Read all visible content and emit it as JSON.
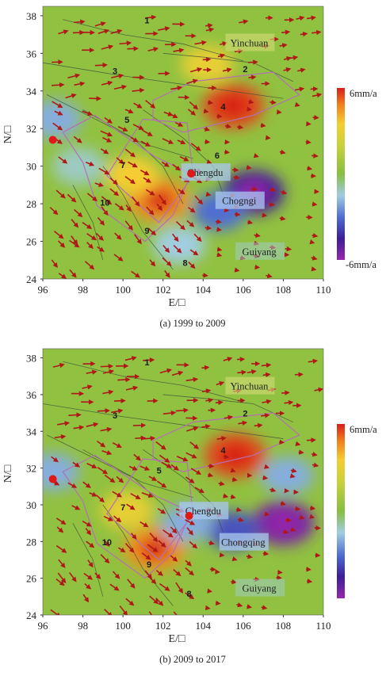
{
  "chart_data": [
    {
      "type": "heatmap",
      "caption": "(a) 1999 to 2009",
      "xlabel": "E/□",
      "ylabel": "N/□",
      "x_ticks": [
        96,
        98,
        100,
        102,
        104,
        106,
        108,
        110
      ],
      "y_ticks": [
        24,
        26,
        28,
        30,
        32,
        34,
        36,
        38
      ],
      "xlim": [
        96,
        110
      ],
      "ylim": [
        24,
        38.5
      ],
      "colorbar": {
        "max_label": "6mm/a",
        "min_label": "-6mm/a",
        "range": [
          -6,
          6
        ]
      },
      "cities": [
        {
          "name": "Yinchuan",
          "lon": 106.3,
          "lat": 36.5
        },
        {
          "name": "Chengdu",
          "lon": 104.1,
          "lat": 29.6
        },
        {
          "name": "Chogngi",
          "lon": 105.8,
          "lat": 28.1
        },
        {
          "name": "Guiyang",
          "lon": 106.8,
          "lat": 25.4
        }
      ],
      "region_numbers": [
        {
          "label": "1",
          "lon": 101.2,
          "lat": 37.6
        },
        {
          "label": "2",
          "lon": 106.1,
          "lat": 35.0
        },
        {
          "label": "3",
          "lon": 99.6,
          "lat": 34.9
        },
        {
          "label": "4",
          "lon": 105.0,
          "lat": 33.0
        },
        {
          "label": "5",
          "lon": 100.2,
          "lat": 32.3
        },
        {
          "label": "6",
          "lon": 104.7,
          "lat": 30.4
        },
        {
          "label": "7",
          "lon": 100.0,
          "lat": 29.9
        },
        {
          "label": "9",
          "lon": 101.2,
          "lat": 26.4
        },
        {
          "label": "10",
          "lon": 99.1,
          "lat": 27.9
        },
        {
          "label": "8",
          "lon": 103.1,
          "lat": 24.7
        }
      ],
      "markers": [
        {
          "lon": 96.5,
          "lat": 31.4
        },
        {
          "lon": 103.4,
          "lat": 29.6
        }
      ],
      "hotspots": [
        {
          "lon": 105.5,
          "lat": 33.2,
          "value": 5.5
        },
        {
          "lon": 101.8,
          "lat": 28.2,
          "value": 4.5
        },
        {
          "lon": 100.5,
          "lat": 29.5,
          "value": 3.5
        },
        {
          "lon": 104.2,
          "lat": 35.4,
          "value": 3.0
        },
        {
          "lon": 106.5,
          "lat": 28.6,
          "value": -4.5
        },
        {
          "lon": 104.8,
          "lat": 27.6,
          "value": -3.0
        },
        {
          "lon": 96.6,
          "lat": 32.5,
          "value": -2.0
        },
        {
          "lon": 102.8,
          "lat": 25.8,
          "value": -1.5
        },
        {
          "lon": 97.8,
          "lat": 30.0,
          "value": -1.2
        }
      ]
    },
    {
      "type": "heatmap",
      "caption": "(b) 2009 to 2017",
      "xlabel": "E/□",
      "ylabel": "N/□",
      "x_ticks": [
        96,
        98,
        100,
        102,
        104,
        106,
        108,
        110
      ],
      "y_ticks": [
        24,
        26,
        28,
        30,
        32,
        34,
        36,
        38
      ],
      "xlim": [
        96,
        110
      ],
      "ylim": [
        24,
        38.5
      ],
      "colorbar": {
        "max_label": "6mm/a",
        "min_label": "",
        "range": [
          -6,
          6
        ]
      },
      "cities": [
        {
          "name": "Yinchuan",
          "lon": 106.3,
          "lat": 36.4
        },
        {
          "name": "Chengdu",
          "lon": 104.0,
          "lat": 29.6
        },
        {
          "name": "Chongqing",
          "lon": 106.0,
          "lat": 27.9
        },
        {
          "name": "Guiyang",
          "lon": 106.8,
          "lat": 25.4
        }
      ],
      "region_numbers": [
        {
          "label": "1",
          "lon": 101.2,
          "lat": 37.6
        },
        {
          "label": "2",
          "lon": 106.1,
          "lat": 34.8
        },
        {
          "label": "3",
          "lon": 99.6,
          "lat": 34.7
        },
        {
          "label": "4",
          "lon": 105.0,
          "lat": 32.8
        },
        {
          "label": "5",
          "lon": 101.8,
          "lat": 31.7
        },
        {
          "label": "7",
          "lon": 100.0,
          "lat": 29.7
        },
        {
          "label": "10",
          "lon": 99.2,
          "lat": 27.8
        },
        {
          "label": "9",
          "lon": 101.3,
          "lat": 26.6
        },
        {
          "label": "8",
          "lon": 103.3,
          "lat": 25.0
        }
      ],
      "markers": [
        {
          "lon": 96.5,
          "lat": 31.4
        },
        {
          "lon": 103.3,
          "lat": 29.4
        }
      ],
      "hotspots": [
        {
          "lon": 105.6,
          "lat": 32.7,
          "value": 5.5
        },
        {
          "lon": 101.6,
          "lat": 27.6,
          "value": 4.5
        },
        {
          "lon": 100.2,
          "lat": 29.7,
          "value": 3.0
        },
        {
          "lon": 108.0,
          "lat": 29.0,
          "value": -5.5
        },
        {
          "lon": 105.5,
          "lat": 28.6,
          "value": -3.5
        },
        {
          "lon": 96.5,
          "lat": 31.8,
          "value": -2.0
        },
        {
          "lon": 103.2,
          "lat": 29.0,
          "value": -2.0
        },
        {
          "lon": 108.2,
          "lat": 31.6,
          "value": -2.0
        }
      ]
    }
  ]
}
